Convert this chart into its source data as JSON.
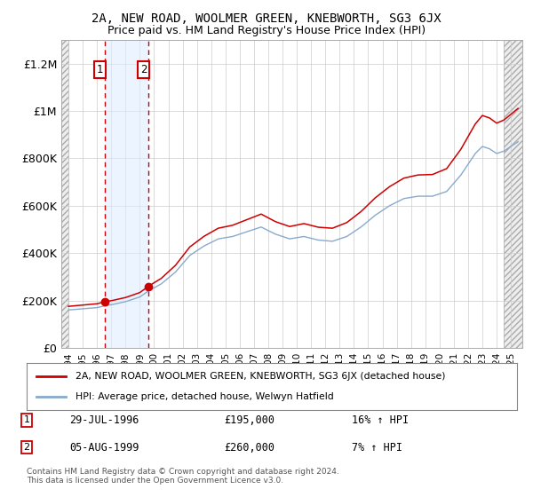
{
  "title": "2A, NEW ROAD, WOOLMER GREEN, KNEBWORTH, SG3 6JX",
  "subtitle": "Price paid vs. HM Land Registry's House Price Index (HPI)",
  "ylim": [
    0,
    1300000
  ],
  "yticks": [
    0,
    200000,
    400000,
    600000,
    800000,
    1000000,
    1200000
  ],
  "ytick_labels": [
    "£0",
    "£200K",
    "£400K",
    "£600K",
    "£800K",
    "£1M",
    "£1.2M"
  ],
  "transaction1": {
    "date": "29-JUL-1996",
    "price": 195000,
    "pct": "16% ↑ HPI",
    "year": 1996.57
  },
  "transaction2": {
    "date": "05-AUG-1999",
    "price": 260000,
    "pct": "7% ↑ HPI",
    "year": 1999.6
  },
  "legend_line1": "2A, NEW ROAD, WOOLMER GREEN, KNEBWORTH, SG3 6JX (detached house)",
  "legend_line2": "HPI: Average price, detached house, Welwyn Hatfield",
  "footer": "Contains HM Land Registry data © Crown copyright and database right 2024.\nThis data is licensed under the Open Government Licence v3.0.",
  "line_color_red": "#cc0000",
  "line_color_blue": "#88aacc",
  "bg_color": "#ffffff",
  "grid_color": "#cccccc",
  "transaction_color": "#cc0000",
  "shade_color": "#ddeeff",
  "hatch_fc": "#eeeeee",
  "xmin": 1993.5,
  "xmax": 2025.8,
  "hatch_left_end": 1994.0,
  "hatch_right_start": 2024.5
}
